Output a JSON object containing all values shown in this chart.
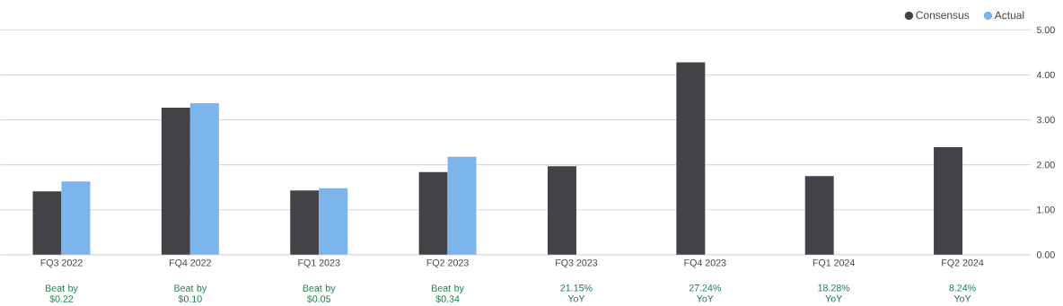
{
  "chart_data": {
    "type": "bar",
    "categories": [
      "FQ3 2022",
      "FQ4 2022",
      "FQ1 2023",
      "FQ2 2023",
      "FQ3 2023",
      "FQ4 2023",
      "FQ1 2024",
      "FQ2 2024"
    ],
    "series": [
      {
        "name": "Consensus",
        "color": "#434247",
        "values": [
          1.41,
          3.27,
          1.43,
          1.84,
          1.97,
          4.28,
          1.75,
          2.39
        ]
      },
      {
        "name": "Actual",
        "color": "#7cb5ec",
        "values": [
          1.63,
          3.37,
          1.48,
          2.18,
          null,
          null,
          null,
          null
        ]
      }
    ],
    "ylim": [
      0,
      5
    ],
    "yticks": [
      {
        "value": 0,
        "label": "0.00"
      },
      {
        "value": 1,
        "label": "1.00"
      },
      {
        "value": 2,
        "label": "2.00"
      },
      {
        "value": 3,
        "label": "3.00"
      },
      {
        "value": 4,
        "label": "4.00"
      },
      {
        "value": 5,
        "label": "5.00"
      }
    ],
    "grid": "y",
    "legend": "top right",
    "annotations": [
      "Beat by $0.22",
      "Beat by $0.10",
      "Beat by $0.05",
      "Beat by $0.34",
      "21.15% YoY",
      "27.24% YoY",
      "18.28% YoY",
      "8.24% YoY"
    ]
  }
}
